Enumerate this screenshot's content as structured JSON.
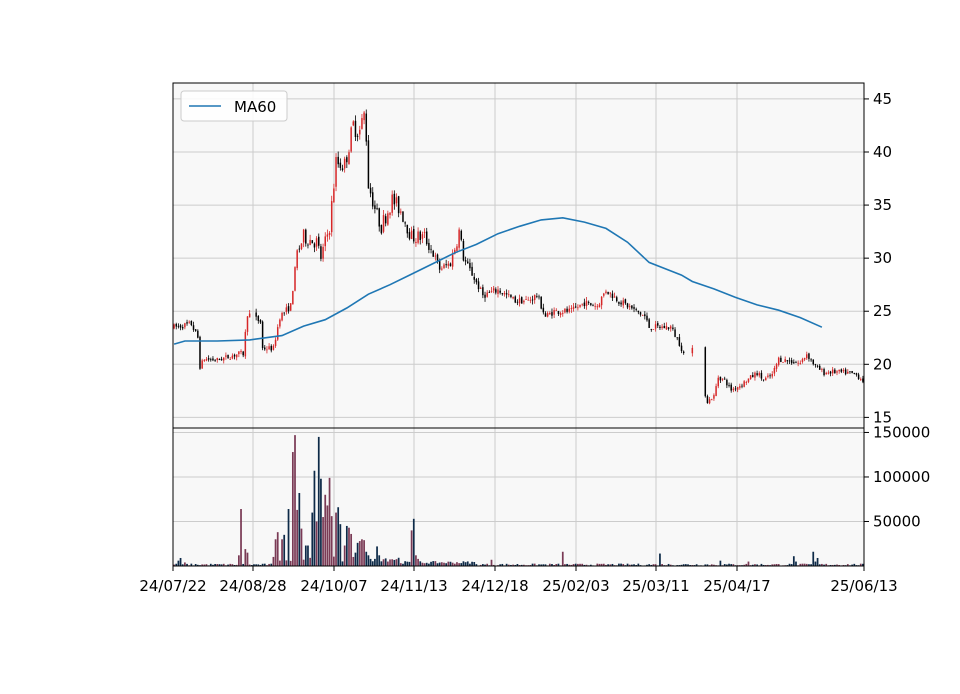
{
  "chart_data": [
    {
      "type": "candlestick",
      "title": "",
      "xlabel": "",
      "ylabel": "",
      "ylim": [
        14,
        46.5
      ],
      "yticks": [
        15,
        20,
        25,
        30,
        35,
        40,
        45
      ],
      "grid": true,
      "legend": {
        "placement": "top-left",
        "entries": [
          "MA60"
        ]
      },
      "colors": {
        "up": "#d62728",
        "down": "#000000",
        "ma": "#1f77b4",
        "plot_bg": "#f8f8f8",
        "grid": "#cccccc"
      },
      "series": [
        {
          "name": "MA60",
          "x": [
            0,
            5,
            10,
            20,
            35,
            50,
            60,
            70,
            80,
            90,
            100,
            110,
            120,
            130,
            140,
            150,
            160,
            170,
            180,
            190,
            200,
            210,
            220,
            230,
            235,
            240,
            250,
            260,
            270,
            280,
            290,
            300
          ],
          "values": [
            21.9,
            22.2,
            22.2,
            22.2,
            22.3,
            22.7,
            23.6,
            24.2,
            25.3,
            26.6,
            27.5,
            28.5,
            29.5,
            30.5,
            31.3,
            32.3,
            33.0,
            33.6,
            33.8,
            33.4,
            32.8,
            31.5,
            29.6,
            28.8,
            28.4,
            27.8,
            27.1,
            26.3,
            25.6,
            25.1,
            24.4,
            23.5
          ]
        }
      ]
    },
    {
      "type": "bar",
      "title": "",
      "series_name": "Volume",
      "ylim": [
        0,
        155000
      ],
      "yticks": [
        50000,
        100000,
        150000
      ],
      "ytick_labels": [
        "50000",
        "100000",
        "150000"
      ],
      "grid": true,
      "colors": {
        "up": "#7a3a55",
        "down": "#0d2a48"
      },
      "x_tick_labels": [
        "24/07/22",
        "24/08/28",
        "24/10/07",
        "24/11/13",
        "24/12/18",
        "25/02/03",
        "25/03/11",
        "25/04/17",
        "25/06/13"
      ]
    }
  ]
}
